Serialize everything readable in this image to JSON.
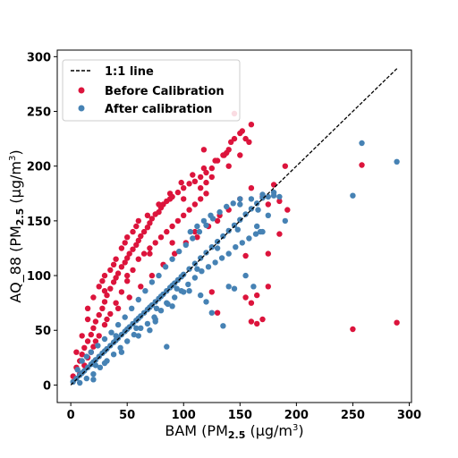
{
  "chart_data": {
    "type": "scatter",
    "xlabel": {
      "pre": "BAM (PM",
      "sub": "2.5",
      "post": " (µg/m",
      "sup": "3",
      "end": ")"
    },
    "ylabel": {
      "pre": "AQ_88 (PM",
      "sub": "2.5",
      "post": " (µg/m",
      "sup": "3",
      "end": ")"
    },
    "xlim": [
      -12,
      302
    ],
    "ylim": [
      -16,
      306
    ],
    "x_ticks": [
      0,
      50,
      100,
      150,
      200,
      250,
      300
    ],
    "y_ticks": [
      0,
      50,
      100,
      150,
      200,
      250,
      300
    ],
    "grid": false,
    "legend_position": "top-left",
    "reference_line": {
      "name": "1:1 line",
      "x": [
        0,
        290
      ],
      "y": [
        0,
        290
      ],
      "color": "#000000",
      "style": "dashed"
    },
    "series": [
      {
        "name": "Before Calibration",
        "color": "#dc143c",
        "points": [
          [
            2,
            8
          ],
          [
            5,
            16
          ],
          [
            8,
            22
          ],
          [
            10,
            28
          ],
          [
            12,
            34
          ],
          [
            15,
            40
          ],
          [
            18,
            46
          ],
          [
            20,
            52
          ],
          [
            22,
            58
          ],
          [
            25,
            64
          ],
          [
            28,
            70
          ],
          [
            30,
            76
          ],
          [
            32,
            82
          ],
          [
            35,
            88
          ],
          [
            38,
            94
          ],
          [
            40,
            98
          ],
          [
            42,
            102
          ],
          [
            45,
            108
          ],
          [
            48,
            112
          ],
          [
            50,
            116
          ],
          [
            52,
            120
          ],
          [
            55,
            124
          ],
          [
            58,
            128
          ],
          [
            60,
            132
          ],
          [
            62,
            136
          ],
          [
            65,
            140
          ],
          [
            68,
            144
          ],
          [
            70,
            148
          ],
          [
            72,
            152
          ],
          [
            75,
            156
          ],
          [
            78,
            158
          ],
          [
            80,
            162
          ],
          [
            82,
            165
          ],
          [
            85,
            168
          ],
          [
            88,
            170
          ],
          [
            90,
            172
          ],
          [
            95,
            176
          ],
          [
            100,
            180
          ],
          [
            105,
            184
          ],
          [
            110,
            186
          ],
          [
            115,
            190
          ],
          [
            120,
            194
          ],
          [
            125,
            198
          ],
          [
            130,
            205
          ],
          [
            135,
            210
          ],
          [
            140,
            215
          ],
          [
            145,
            225
          ],
          [
            150,
            230
          ],
          [
            155,
            225
          ],
          [
            160,
            238
          ],
          [
            8,
            10
          ],
          [
            12,
            18
          ],
          [
            15,
            25
          ],
          [
            18,
            30
          ],
          [
            20,
            35
          ],
          [
            25,
            45
          ],
          [
            30,
            55
          ],
          [
            35,
            65
          ],
          [
            40,
            75
          ],
          [
            45,
            85
          ],
          [
            50,
            95
          ],
          [
            55,
            105
          ],
          [
            60,
            115
          ],
          [
            65,
            120
          ],
          [
            70,
            125
          ],
          [
            75,
            130
          ],
          [
            80,
            135
          ],
          [
            85,
            140
          ],
          [
            90,
            145
          ],
          [
            95,
            150
          ],
          [
            100,
            155
          ],
          [
            105,
            160
          ],
          [
            110,
            165
          ],
          [
            115,
            170
          ],
          [
            120,
            175
          ],
          [
            25,
            90
          ],
          [
            30,
            100
          ],
          [
            35,
            105
          ],
          [
            40,
            115
          ],
          [
            45,
            125
          ],
          [
            50,
            135
          ],
          [
            55,
            140
          ],
          [
            60,
            150
          ],
          [
            20,
            80
          ],
          [
            15,
            70
          ],
          [
            10,
            45
          ],
          [
            5,
            30
          ],
          [
            28,
            95
          ],
          [
            38,
            110
          ],
          [
            48,
            130
          ],
          [
            58,
            145
          ],
          [
            68,
            155
          ],
          [
            78,
            165
          ],
          [
            88,
            175
          ],
          [
            98,
            185
          ],
          [
            108,
            192
          ],
          [
            118,
            198
          ],
          [
            128,
            205
          ],
          [
            138,
            212
          ],
          [
            145,
            248
          ],
          [
            136,
            210
          ],
          [
            158,
            222
          ],
          [
            170,
            172
          ],
          [
            175,
            165
          ],
          [
            180,
            183
          ],
          [
            185,
            168
          ],
          [
            190,
            200
          ],
          [
            155,
            80
          ],
          [
            160,
            75
          ],
          [
            165,
            82
          ],
          [
            170,
            60
          ],
          [
            175,
            90
          ],
          [
            165,
            56
          ],
          [
            160,
            58
          ],
          [
            130,
            66
          ],
          [
            125,
            85
          ],
          [
            155,
            118
          ],
          [
            175,
            120
          ],
          [
            185,
            138
          ],
          [
            192,
            160
          ],
          [
            258,
            201
          ],
          [
            289,
            57
          ],
          [
            250,
            51
          ],
          [
            15,
            60
          ],
          [
            30,
            86
          ],
          [
            50,
            100
          ],
          [
            70,
            120
          ],
          [
            90,
            130
          ],
          [
            110,
            140
          ],
          [
            130,
            150
          ],
          [
            140,
            160
          ],
          [
            150,
            170
          ],
          [
            160,
            180
          ],
          [
            100,
            170
          ],
          [
            115,
            180
          ],
          [
            120,
            185
          ],
          [
            125,
            190
          ],
          [
            140,
            200
          ],
          [
            150,
            210
          ],
          [
            142,
            222
          ],
          [
            152,
            232
          ],
          [
            118,
            215
          ],
          [
            22,
            40
          ],
          [
            32,
            60
          ],
          [
            42,
            70
          ],
          [
            52,
            80
          ],
          [
            62,
            90
          ],
          [
            72,
            100
          ],
          [
            82,
            110
          ],
          [
            92,
            120
          ],
          [
            102,
            130
          ],
          [
            112,
            135
          ],
          [
            122,
            145
          ],
          [
            132,
            155
          ]
        ]
      },
      {
        "name": "After calibration",
        "color": "#4682b4",
        "points": [
          [
            2,
            3
          ],
          [
            5,
            6
          ],
          [
            8,
            9
          ],
          [
            10,
            11
          ],
          [
            12,
            13
          ],
          [
            15,
            16
          ],
          [
            18,
            19
          ],
          [
            20,
            21
          ],
          [
            22,
            23
          ],
          [
            25,
            26
          ],
          [
            28,
            29
          ],
          [
            30,
            31
          ],
          [
            32,
            33
          ],
          [
            35,
            36
          ],
          [
            38,
            39
          ],
          [
            40,
            41
          ],
          [
            42,
            43
          ],
          [
            45,
            46
          ],
          [
            48,
            49
          ],
          [
            50,
            51
          ],
          [
            52,
            53
          ],
          [
            55,
            56
          ],
          [
            58,
            59
          ],
          [
            60,
            61
          ],
          [
            62,
            63
          ],
          [
            65,
            66
          ],
          [
            68,
            69
          ],
          [
            70,
            71
          ],
          [
            72,
            73
          ],
          [
            75,
            76
          ],
          [
            78,
            79
          ],
          [
            80,
            81
          ],
          [
            82,
            83
          ],
          [
            85,
            86
          ],
          [
            88,
            89
          ],
          [
            90,
            91
          ],
          [
            92,
            93
          ],
          [
            95,
            96
          ],
          [
            98,
            99
          ],
          [
            100,
            101
          ],
          [
            105,
            106
          ],
          [
            110,
            111
          ],
          [
            115,
            116
          ],
          [
            120,
            121
          ],
          [
            125,
            126
          ],
          [
            130,
            131
          ],
          [
            135,
            136
          ],
          [
            140,
            141
          ],
          [
            145,
            146
          ],
          [
            150,
            151
          ],
          [
            155,
            156
          ],
          [
            160,
            161
          ],
          [
            165,
            166
          ],
          [
            170,
            171
          ],
          [
            175,
            172
          ],
          [
            180,
            173
          ],
          [
            185,
            172
          ],
          [
            6,
            14
          ],
          [
            10,
            22
          ],
          [
            14,
            26
          ],
          [
            18,
            30
          ],
          [
            24,
            36
          ],
          [
            30,
            42
          ],
          [
            36,
            48
          ],
          [
            42,
            55
          ],
          [
            48,
            62
          ],
          [
            54,
            70
          ],
          [
            60,
            78
          ],
          [
            66,
            86
          ],
          [
            72,
            94
          ],
          [
            78,
            100
          ],
          [
            84,
            108
          ],
          [
            90,
            115
          ],
          [
            96,
            122
          ],
          [
            102,
            128
          ],
          [
            108,
            134
          ],
          [
            114,
            140
          ],
          [
            120,
            146
          ],
          [
            126,
            152
          ],
          [
            132,
            158
          ],
          [
            138,
            163
          ],
          [
            144,
            166
          ],
          [
            150,
            170
          ],
          [
            8,
            2
          ],
          [
            14,
            6
          ],
          [
            20,
            10
          ],
          [
            26,
            16
          ],
          [
            32,
            22
          ],
          [
            38,
            28
          ],
          [
            44,
            34
          ],
          [
            50,
            40
          ],
          [
            56,
            46
          ],
          [
            62,
            52
          ],
          [
            68,
            56
          ],
          [
            74,
            62
          ],
          [
            80,
            68
          ],
          [
            86,
            74
          ],
          [
            92,
            80
          ],
          [
            98,
            86
          ],
          [
            104,
            92
          ],
          [
            110,
            98
          ],
          [
            116,
            104
          ],
          [
            122,
            108
          ],
          [
            128,
            112
          ],
          [
            134,
            116
          ],
          [
            140,
            120
          ],
          [
            146,
            126
          ],
          [
            152,
            130
          ],
          [
            158,
            134
          ],
          [
            164,
            138
          ],
          [
            170,
            140
          ],
          [
            22,
            18
          ],
          [
            40,
            45
          ],
          [
            58,
            52
          ],
          [
            76,
            70
          ],
          [
            94,
            88
          ],
          [
            112,
            106
          ],
          [
            130,
            125
          ],
          [
            148,
            142
          ],
          [
            166,
            160
          ],
          [
            175,
            155
          ],
          [
            165,
            145
          ],
          [
            190,
            150
          ],
          [
            155,
            100
          ],
          [
            140,
            90
          ],
          [
            145,
            88
          ],
          [
            125,
            66
          ],
          [
            120,
            76
          ],
          [
            115,
            82
          ],
          [
            100,
            85
          ],
          [
            85,
            75
          ],
          [
            75,
            60
          ],
          [
            135,
            54
          ],
          [
            162,
            90
          ],
          [
            168,
            140
          ],
          [
            258,
            221
          ],
          [
            289,
            204
          ],
          [
            250,
            173
          ],
          [
            106,
            140
          ],
          [
            112,
            145
          ],
          [
            118,
            150
          ],
          [
            124,
            155
          ],
          [
            150,
            165
          ],
          [
            160,
            170
          ],
          [
            170,
            174
          ],
          [
            180,
            176
          ],
          [
            30,
            20
          ],
          [
            45,
            30
          ],
          [
            60,
            45
          ],
          [
            75,
            58
          ],
          [
            90,
            72
          ],
          [
            105,
            86
          ],
          [
            85,
            35
          ],
          [
            70,
            50
          ],
          [
            20,
            5
          ]
        ]
      }
    ]
  }
}
